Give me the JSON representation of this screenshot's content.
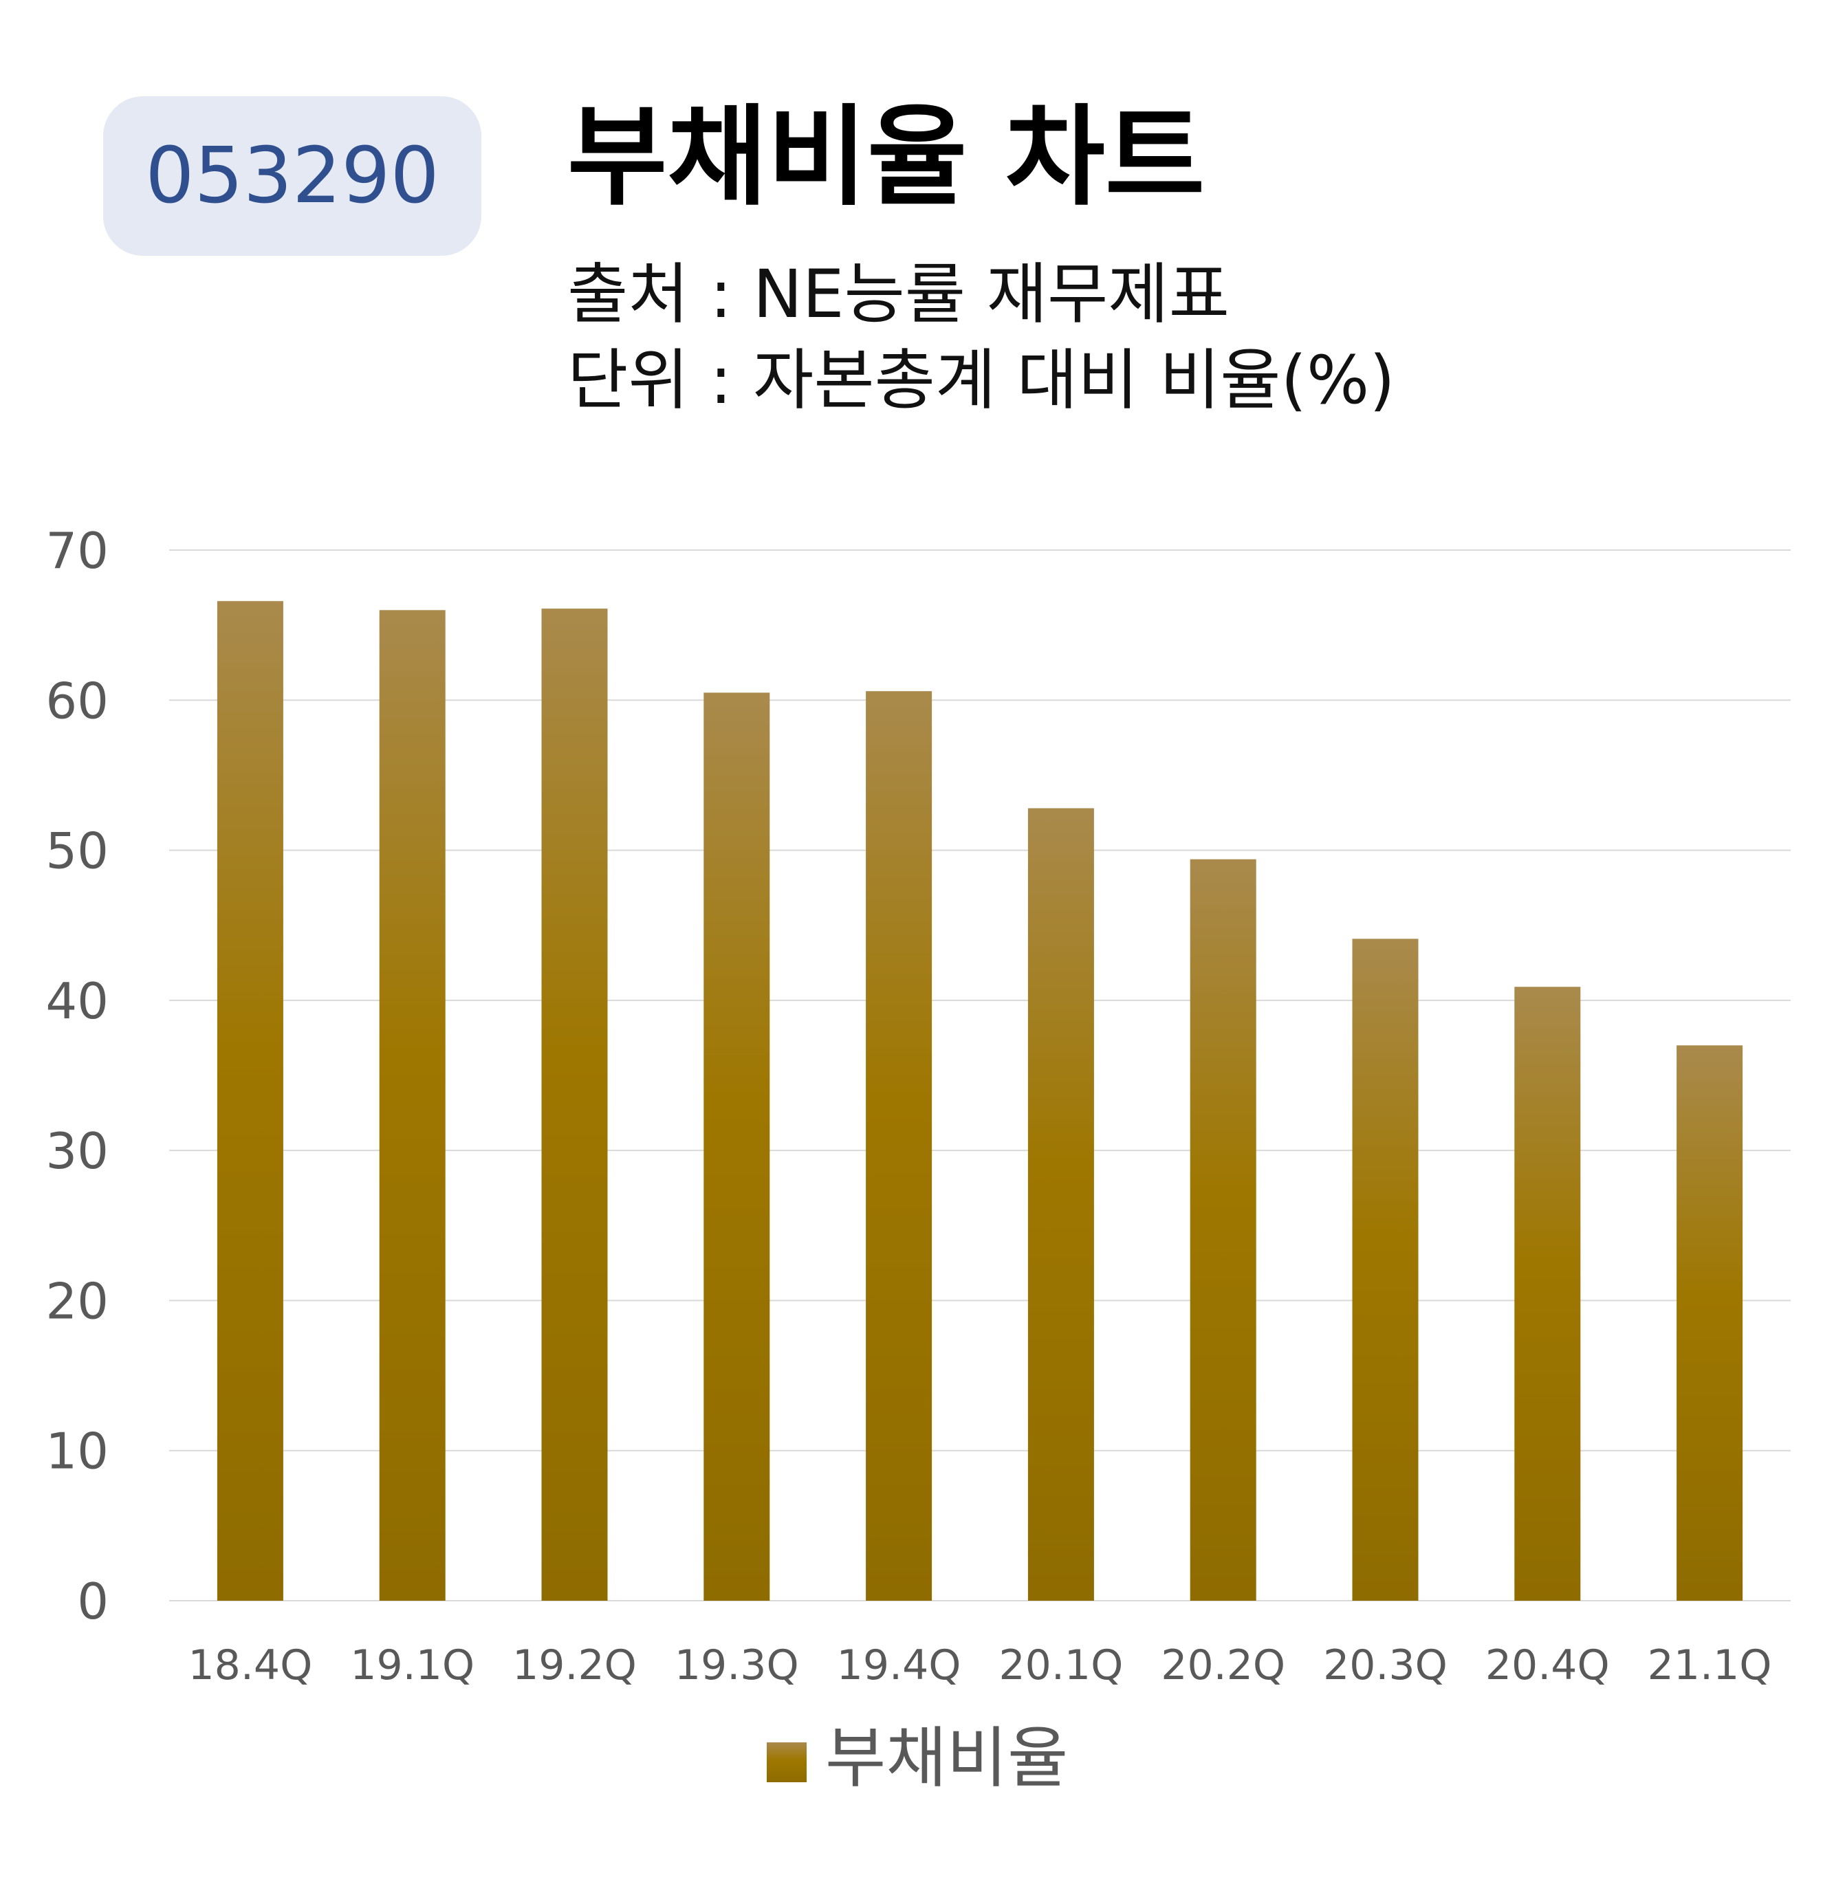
{
  "badge": {
    "code": "053290"
  },
  "header": {
    "title": "부채비율 차트",
    "source": "출처 : NE능률 재무제표",
    "unit": "단위 : 자본총계 대비 비율(%)"
  },
  "colors": {
    "bar_top": "#a98a4c",
    "bar_mid": "#9e7700",
    "bar_bottom": "#8f6c00",
    "grid": "#d9d9d9",
    "badge_bg": "#e4e9f4",
    "badge_text": "#2f4f8f"
  },
  "chart_data": {
    "type": "bar",
    "categories": [
      "18.4Q",
      "19.1Q",
      "19.2Q",
      "19.3Q",
      "19.4Q",
      "20.1Q",
      "20.2Q",
      "20.3Q",
      "20.4Q",
      "21.1Q"
    ],
    "series": [
      {
        "name": "부채비율",
        "values": [
          66.6,
          66.0,
          66.1,
          60.5,
          60.6,
          52.8,
          49.4,
          44.1,
          40.9,
          37.0
        ]
      }
    ],
    "ylim": [
      0,
      70
    ],
    "yticks": [
      0,
      10,
      20,
      30,
      40,
      50,
      60,
      70
    ],
    "grid": true,
    "legend": "bottom-center"
  }
}
